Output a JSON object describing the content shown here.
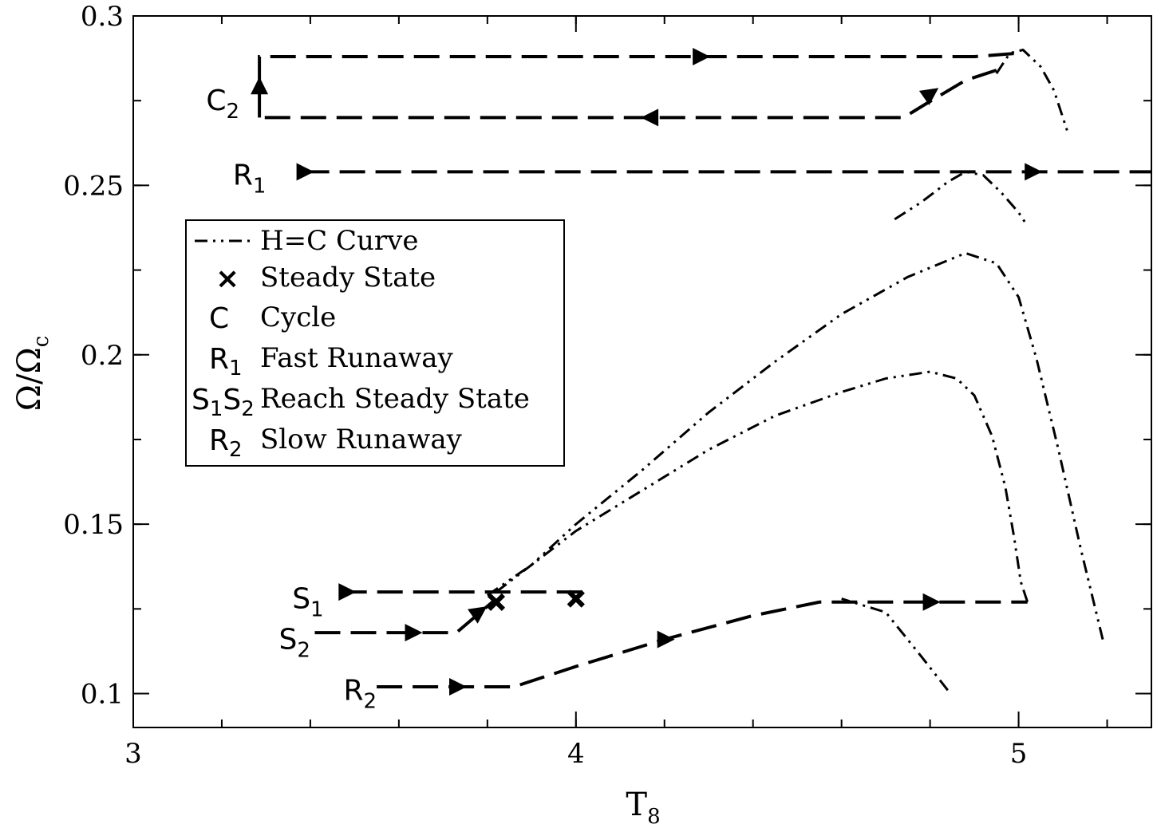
{
  "chart_data": {
    "type": "line",
    "title": "",
    "xlabel": "T",
    "xlabel_sub": "8",
    "ylabel": "Ω/Ω",
    "ylabel_sub": "c",
    "xlim": [
      3,
      5.3
    ],
    "ylim": [
      0.09,
      0.3
    ],
    "x_ticks": [
      {
        "value": 3,
        "label": "3"
      },
      {
        "value": 4,
        "label": "4"
      },
      {
        "value": 5,
        "label": "5"
      }
    ],
    "y_ticks": [
      {
        "value": 0.1,
        "label": "0.1"
      },
      {
        "value": 0.15,
        "label": "0.15"
      },
      {
        "value": 0.2,
        "label": "0.2"
      },
      {
        "value": 0.25,
        "label": "0.25"
      },
      {
        "value": 0.3,
        "label": "0.3"
      }
    ],
    "x_minor_step": 0.2,
    "y_minor_step": 0.025,
    "grid": false,
    "legend_position": "left",
    "legend": [
      {
        "symbol": "",
        "symbol_sub": "",
        "line": "dashdotdot",
        "label": "H=C Curve"
      },
      {
        "symbol": "×",
        "symbol_sub": "",
        "line": "",
        "label": "Steady State"
      },
      {
        "symbol": "C",
        "symbol_sub": "",
        "line": "",
        "label": "Cycle"
      },
      {
        "symbol": "R",
        "symbol_sub": "1",
        "line": "",
        "label": "Fast Runaway"
      },
      {
        "symbol": "S",
        "symbol_sub": "1",
        "symbol2": "S",
        "symbol2_sub": "2",
        "line": "",
        "label": "Reach    Steady State"
      },
      {
        "symbol": "R",
        "symbol_sub": "2",
        "line": "",
        "label": "Slow Runaway"
      }
    ],
    "hc_curves": [
      {
        "points": [
          [
            4.84,
            0.101
          ],
          [
            4.78,
            0.111
          ],
          [
            4.7,
            0.124
          ],
          [
            4.6,
            0.128
          ]
        ]
      },
      {
        "points": [
          [
            3.8,
            0.129
          ],
          [
            3.9,
            0.138
          ],
          [
            4.0,
            0.148
          ],
          [
            4.15,
            0.16
          ],
          [
            4.3,
            0.172
          ],
          [
            4.45,
            0.182
          ],
          [
            4.6,
            0.189
          ],
          [
            4.7,
            0.193
          ],
          [
            4.8,
            0.195
          ],
          [
            4.86,
            0.193
          ],
          [
            4.9,
            0.188
          ],
          [
            4.94,
            0.176
          ],
          [
            4.97,
            0.161
          ],
          [
            4.99,
            0.146
          ],
          [
            5.005,
            0.133
          ],
          [
            5.02,
            0.127
          ]
        ]
      },
      {
        "points": [
          [
            3.82,
            0.13
          ],
          [
            3.9,
            0.138
          ],
          [
            4.0,
            0.15
          ],
          [
            4.15,
            0.166
          ],
          [
            4.3,
            0.183
          ],
          [
            4.45,
            0.198
          ],
          [
            4.6,
            0.212
          ],
          [
            4.75,
            0.223
          ],
          [
            4.88,
            0.23
          ],
          [
            4.95,
            0.227
          ],
          [
            5.0,
            0.217
          ],
          [
            5.04,
            0.199
          ],
          [
            5.09,
            0.172
          ],
          [
            5.14,
            0.143
          ],
          [
            5.19,
            0.116
          ]
        ]
      },
      {
        "points": [
          [
            4.72,
            0.24
          ],
          [
            4.78,
            0.245
          ],
          [
            4.84,
            0.251
          ],
          [
            4.88,
            0.254
          ],
          [
            4.92,
            0.253
          ],
          [
            4.96,
            0.248
          ],
          [
            5.0,
            0.242
          ],
          [
            5.02,
            0.238
          ]
        ]
      },
      {
        "points": [
          [
            4.95,
            0.283
          ],
          [
            4.98,
            0.289
          ],
          [
            5.01,
            0.29
          ],
          [
            5.05,
            0.285
          ],
          [
            5.08,
            0.278
          ],
          [
            5.11,
            0.266
          ]
        ]
      }
    ],
    "trajectories": [
      {
        "name": "C",
        "sub": "2",
        "label_at": [
          3.24,
          0.275
        ],
        "points": [
          [
            3.285,
            0.27
          ],
          [
            3.285,
            0.288
          ],
          [
            4.9,
            0.288
          ],
          [
            5.0,
            0.289
          ]
        ]
      },
      {
        "name": "C",
        "sub": "2",
        "label_at": null,
        "points": [
          [
            4.95,
            0.284
          ],
          [
            4.88,
            0.281
          ],
          [
            4.79,
            0.274
          ],
          [
            4.74,
            0.27
          ],
          [
            3.285,
            0.27
          ]
        ]
      },
      {
        "name": "R",
        "sub": "1",
        "label_at": [
          3.3,
          0.253
        ],
        "points": [
          [
            3.385,
            0.254
          ],
          [
            5.3,
            0.254
          ]
        ]
      },
      {
        "name": "S",
        "sub": "1",
        "label_at": [
          3.43,
          0.128
        ],
        "points": [
          [
            3.47,
            0.13
          ],
          [
            4.03,
            0.13
          ]
        ]
      },
      {
        "name": "S",
        "sub": "2",
        "label_at": [
          3.4,
          0.116
        ],
        "points": [
          [
            3.41,
            0.118
          ],
          [
            3.73,
            0.118
          ],
          [
            3.82,
            0.128
          ]
        ]
      },
      {
        "name": "R",
        "sub": "2",
        "label_at": [
          3.55,
          0.101
        ],
        "points": [
          [
            3.55,
            0.102
          ],
          [
            3.86,
            0.102
          ],
          [
            4.0,
            0.108
          ],
          [
            4.2,
            0.116
          ],
          [
            4.4,
            0.123
          ],
          [
            4.55,
            0.127
          ],
          [
            5.02,
            0.127
          ]
        ]
      }
    ],
    "arrows": [
      {
        "x": 4.28,
        "y": 0.288,
        "dir": "right"
      },
      {
        "x": 4.8,
        "y": 0.277,
        "dir": "upright"
      },
      {
        "x": 4.17,
        "y": 0.27,
        "dir": "left"
      },
      {
        "x": 3.285,
        "y": 0.279,
        "dir": "up"
      },
      {
        "x": 3.385,
        "y": 0.254,
        "dir": "right"
      },
      {
        "x": 5.03,
        "y": 0.254,
        "dir": "right"
      },
      {
        "x": 3.48,
        "y": 0.13,
        "dir": "right"
      },
      {
        "x": 3.63,
        "y": 0.118,
        "dir": "right"
      },
      {
        "x": 3.78,
        "y": 0.124,
        "dir": "upright"
      },
      {
        "x": 3.73,
        "y": 0.102,
        "dir": "right"
      },
      {
        "x": 4.2,
        "y": 0.116,
        "dir": "right"
      },
      {
        "x": 4.8,
        "y": 0.127,
        "dir": "right"
      }
    ],
    "steady_states": [
      [
        3.82,
        0.127
      ],
      [
        4.0,
        0.128
      ]
    ]
  }
}
